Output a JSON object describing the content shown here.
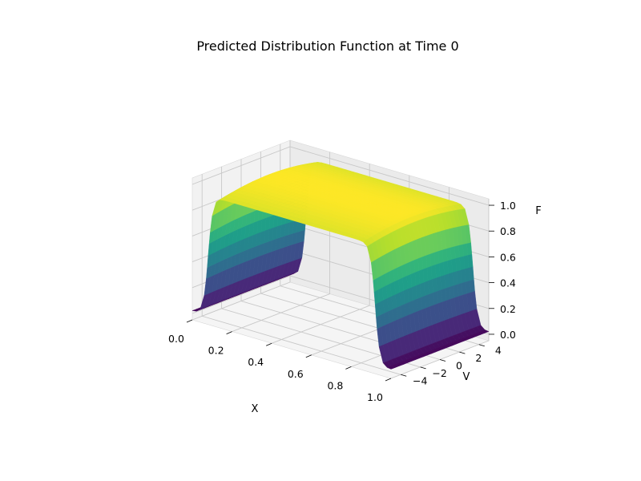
{
  "chart_data": {
    "type": "surface3d",
    "title": "Predicted Distribution Function at Time 0",
    "xlabel": "X",
    "ylabel": "V",
    "zlabel": "F",
    "xlim": [
      0,
      1
    ],
    "vlim": [
      -5,
      5
    ],
    "zlim": [
      0,
      1
    ],
    "x_ticks": [
      "0.0",
      "0.2",
      "0.4",
      "0.6",
      "0.8",
      "1.0"
    ],
    "v_ticks": [
      "−4",
      "−2",
      "0",
      "2",
      "4"
    ],
    "z_ticks": [
      "0.0",
      "0.2",
      "0.4",
      "0.6",
      "0.8",
      "1.0"
    ],
    "colormap": "viridis",
    "grid": true,
    "surface": {
      "description_of_shape": "plateau over x in [0.08, 0.92] for all v",
      "plateau_x_start": 0.08,
      "plateau_x_end": 0.92,
      "peak_F": 1.0,
      "F_at_v_edges": 0.95,
      "baseline_F": 0.02
    }
  }
}
